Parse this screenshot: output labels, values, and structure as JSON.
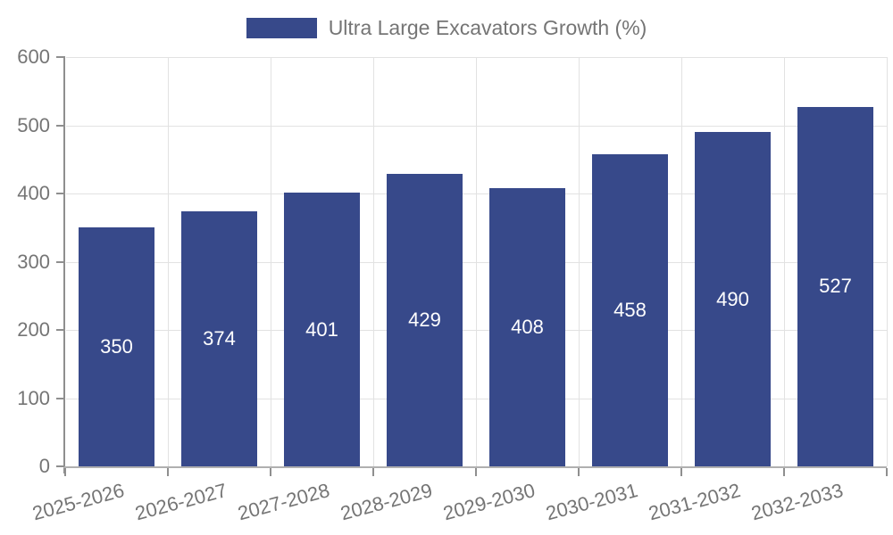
{
  "chart_data": {
    "type": "bar",
    "title": "",
    "legend": {
      "label": "Ultra Large Excavators Growth (%)"
    },
    "categories": [
      "2025-2026",
      "2026-2027",
      "2027-2028",
      "2028-2029",
      "2029-2030",
      "2030-2031",
      "2031-2032",
      "2032-2033"
    ],
    "series": [
      {
        "name": "Ultra Large Excavators Growth (%)",
        "values": [
          350,
          374,
          401,
          429,
          408,
          458,
          490,
          527
        ]
      }
    ],
    "ylim": [
      0,
      600
    ],
    "yticks": [
      0,
      100,
      200,
      300,
      400,
      500,
      600
    ],
    "grid": true,
    "legend_position": "top",
    "colors": {
      "bar": "#37498a",
      "bar_label": "#ffffff",
      "axis_text": "#757575",
      "axis_line": "#8f8f8f",
      "x_axis_line": "#b0b0b0",
      "gridline": "#e2e2e2",
      "background": "#ffffff"
    }
  }
}
